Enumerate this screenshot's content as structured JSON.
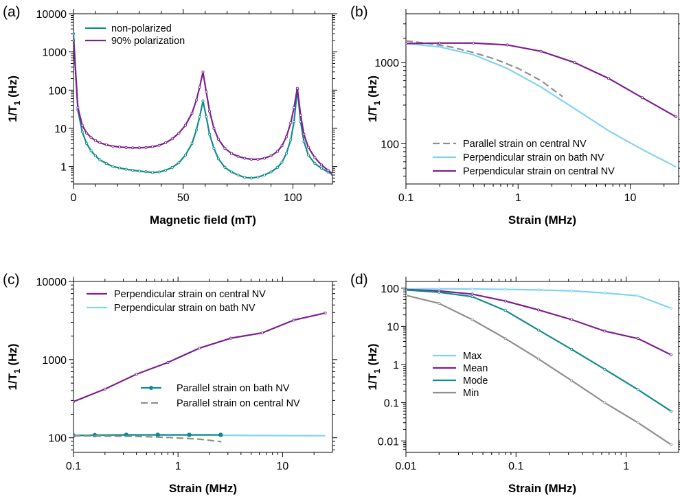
{
  "chart_data": [
    {
      "panel": "(a)",
      "type": "line",
      "xlabel": "Magnetic field (mT)",
      "ylabel_main": "1/T",
      "ylabel_sub": "1",
      "ylabel_tail": " (Hz)",
      "xscale": "linear",
      "yscale": "log",
      "xlim": [
        0,
        118
      ],
      "ylim": [
        0.35,
        10000
      ],
      "xticks": [
        {
          "v": 0,
          "label": "0"
        },
        {
          "v": 50,
          "label": "50"
        },
        {
          "v": 100,
          "label": "100"
        }
      ],
      "yticks": [
        {
          "v": 1,
          "label": "1"
        },
        {
          "v": 10,
          "label": "10"
        },
        {
          "v": 100,
          "label": "100"
        },
        {
          "v": 1000,
          "label": "1000"
        },
        {
          "v": 10000,
          "label": "10000"
        }
      ],
      "legend_position": "top-left",
      "series": [
        {
          "name": "non-polarized",
          "color": "#108b8b",
          "dash": "",
          "markers": "open",
          "x": [
            0,
            2,
            4,
            6,
            8,
            10,
            12,
            15,
            18,
            21,
            24,
            27,
            30,
            33,
            36,
            39,
            42,
            45,
            48,
            51,
            54,
            56,
            57.5,
            59,
            60.5,
            62,
            64,
            66,
            69,
            72,
            75,
            78,
            81,
            84,
            87,
            90,
            93,
            95,
            97,
            99,
            100.5,
            102,
            103.5,
            105,
            107,
            110,
            113,
            116,
            118
          ],
          "y": [
            3000,
            30,
            8,
            4,
            2.6,
            1.9,
            1.5,
            1.2,
            1.0,
            0.92,
            0.85,
            0.8,
            0.76,
            0.73,
            0.7,
            0.72,
            0.8,
            0.95,
            1.25,
            2.0,
            4.0,
            9,
            20,
            52,
            20,
            7,
            3,
            1.6,
            0.95,
            0.72,
            0.6,
            0.52,
            0.5,
            0.53,
            0.6,
            0.72,
            0.95,
            1.3,
            2.2,
            5,
            15,
            105,
            15,
            4.5,
            2.0,
            1.2,
            0.9,
            0.72,
            0.62
          ]
        },
        {
          "name": "90% polarization",
          "color": "#7b1f8e",
          "dash": "",
          "markers": "open",
          "x": [
            0,
            2,
            4,
            6,
            8,
            10,
            12,
            15,
            18,
            21,
            24,
            27,
            30,
            33,
            36,
            39,
            42,
            45,
            48,
            51,
            54,
            56,
            57.5,
            59,
            60.5,
            62,
            64,
            66,
            69,
            72,
            75,
            78,
            81,
            84,
            87,
            90,
            93,
            95,
            97,
            99,
            100.5,
            102,
            103.5,
            105,
            107,
            110,
            113,
            116,
            118
          ],
          "y": [
            2000,
            35,
            12,
            7.5,
            5.8,
            4.8,
            4.2,
            3.7,
            3.4,
            3.25,
            3.15,
            3.1,
            3.1,
            3.15,
            3.3,
            3.6,
            4.2,
            5.3,
            7.5,
            12,
            25,
            55,
            120,
            300,
            90,
            28,
            10,
            5.2,
            3.0,
            2.2,
            1.85,
            1.65,
            1.55,
            1.55,
            1.65,
            1.9,
            2.5,
            3.5,
            6,
            14,
            35,
            112,
            22,
            7,
            3.2,
            1.7,
            1.1,
            0.8,
            0.65
          ]
        }
      ]
    },
    {
      "panel": "(b)",
      "type": "line",
      "xlabel": "Strain (MHz)",
      "ylabel_main": "1/T",
      "ylabel_sub": "1",
      "ylabel_tail": " (Hz)",
      "xscale": "log",
      "yscale": "log",
      "xlim": [
        0.1,
        27
      ],
      "ylim": [
        32,
        4000
      ],
      "xticks": [
        {
          "v": 0.1,
          "label": "0.1"
        },
        {
          "v": 1,
          "label": "1"
        },
        {
          "v": 10,
          "label": "10"
        }
      ],
      "yticks": [
        {
          "v": 100,
          "label": "100"
        },
        {
          "v": 1000,
          "label": "1000"
        }
      ],
      "legend_position": "bottom-left",
      "series": [
        {
          "name": "Parallel strain on central NV",
          "color": "#8e8e8e",
          "dash": "10,5",
          "markers": "none",
          "x": [
            0.1,
            0.16,
            0.25,
            0.4,
            0.63,
            1.0,
            1.6,
            2.5
          ],
          "y": [
            1850,
            1720,
            1560,
            1330,
            1100,
            850,
            600,
            380
          ]
        },
        {
          "name": "Perpendicular strain on bath NV",
          "color": "#7fd3f2",
          "dash": "",
          "markers": "none",
          "x": [
            0.1,
            0.2,
            0.4,
            0.8,
            1.6,
            3.2,
            6.4,
            12.8,
            25.6
          ],
          "y": [
            1720,
            1560,
            1250,
            850,
            500,
            270,
            145,
            85,
            52
          ]
        },
        {
          "name": "Perpendicular strain on central NV",
          "color": "#7b1f8e",
          "dash": "",
          "markers": "open",
          "x": [
            0.1,
            0.2,
            0.4,
            0.8,
            1.6,
            3.2,
            6.4,
            12.8,
            25.6
          ],
          "y": [
            1720,
            1740,
            1740,
            1650,
            1380,
            1000,
            640,
            370,
            215
          ]
        }
      ]
    },
    {
      "panel": "(c)",
      "type": "line",
      "xlabel": "Strain (MHz)",
      "ylabel_main": "1/T",
      "ylabel_sub": "1",
      "ylabel_tail": " (Hz)",
      "xscale": "log",
      "yscale": "log",
      "xlim": [
        0.1,
        30
      ],
      "ylim": [
        65,
        10000
      ],
      "xticks": [
        {
          "v": 0.1,
          "label": "0.1"
        },
        {
          "v": 1,
          "label": "1"
        },
        {
          "v": 10,
          "label": "10"
        }
      ],
      "yticks": [
        {
          "v": 100,
          "label": "100"
        },
        {
          "v": 1000,
          "label": "1000"
        },
        {
          "v": 10000,
          "label": "10000"
        }
      ],
      "legend_position": "top-left",
      "series": [
        {
          "name": "Perpendicular strain on central NV",
          "color": "#7b1f8e",
          "dash": "",
          "markers": "open",
          "x": [
            0.1,
            0.2,
            0.4,
            0.8,
            1.6,
            3.2,
            6.4,
            12.8,
            25.6
          ],
          "y": [
            290,
            420,
            650,
            920,
            1400,
            1880,
            2200,
            3200,
            3950
          ]
        },
        {
          "name": "Perpendicular strain on bath NV",
          "color": "#7fd3f2",
          "dash": "",
          "markers": "none",
          "x": [
            0.1,
            0.4,
            1.6,
            6.4,
            25.6
          ],
          "y": [
            107,
            108,
            108,
            107,
            106
          ]
        },
        {
          "name": "Parallel strain on bath NV",
          "color": "#108b8b",
          "dash": "",
          "markers": "filled",
          "x": [
            0.1,
            0.16,
            0.32,
            0.64,
            1.28,
            2.56
          ],
          "y": [
            107,
            108,
            109,
            109,
            109,
            109
          ]
        },
        {
          "name": "Parallel strain on central NV",
          "color": "#8e8e8e",
          "dash": "10,5",
          "markers": "none",
          "x": [
            0.1,
            0.2,
            0.4,
            0.8,
            1.6,
            2.6
          ],
          "y": [
            106,
            105,
            104,
            101,
            96,
            89
          ]
        }
      ]
    },
    {
      "panel": "(d)",
      "type": "line",
      "xlabel": "Strain (MHz)",
      "ylabel_main": "1/T",
      "ylabel_sub": "1",
      "ylabel_tail": " (Hz)",
      "xscale": "log",
      "yscale": "log",
      "xlim": [
        0.01,
        3
      ],
      "ylim": [
        0.005,
        150
      ],
      "xticks": [
        {
          "v": 0.01,
          "label": "0.01"
        },
        {
          "v": 0.1,
          "label": "0.1"
        },
        {
          "v": 1,
          "label": "1"
        }
      ],
      "yticks": [
        {
          "v": 0.01,
          "label": "0.01"
        },
        {
          "v": 0.1,
          "label": "0.1"
        },
        {
          "v": 1,
          "label": "1"
        },
        {
          "v": 10,
          "label": "10"
        },
        {
          "v": 100,
          "label": "100"
        }
      ],
      "legend_position": "left",
      "series": [
        {
          "name": "Max",
          "color": "#7fd3f2",
          "dash": "",
          "markers": "open",
          "x": [
            0.01,
            0.02,
            0.04,
            0.08,
            0.16,
            0.32,
            0.64,
            1.28,
            2.56
          ],
          "y": [
            95,
            96,
            95,
            93,
            90,
            85,
            75,
            63,
            30
          ]
        },
        {
          "name": "Mean",
          "color": "#7b1f8e",
          "dash": "",
          "markers": "open",
          "x": [
            0.01,
            0.02,
            0.04,
            0.08,
            0.16,
            0.32,
            0.64,
            1.28,
            2.56
          ],
          "y": [
            92,
            85,
            70,
            46,
            27,
            15,
            7.5,
            4.8,
            1.8
          ]
        },
        {
          "name": "Mode",
          "color": "#108b8b",
          "dash": "",
          "markers": "open",
          "x": [
            0.01,
            0.02,
            0.04,
            0.08,
            0.16,
            0.32,
            0.64,
            1.28,
            2.56
          ],
          "y": [
            90,
            78,
            60,
            26,
            8,
            2.5,
            0.75,
            0.22,
            0.06
          ]
        },
        {
          "name": "Min",
          "color": "#8e8e8e",
          "dash": "",
          "markers": "open",
          "x": [
            0.01,
            0.02,
            0.04,
            0.08,
            0.16,
            0.32,
            0.64,
            1.28,
            2.56
          ],
          "y": [
            65,
            40,
            15,
            4.8,
            1.4,
            0.38,
            0.1,
            0.03,
            0.008
          ]
        }
      ]
    }
  ]
}
